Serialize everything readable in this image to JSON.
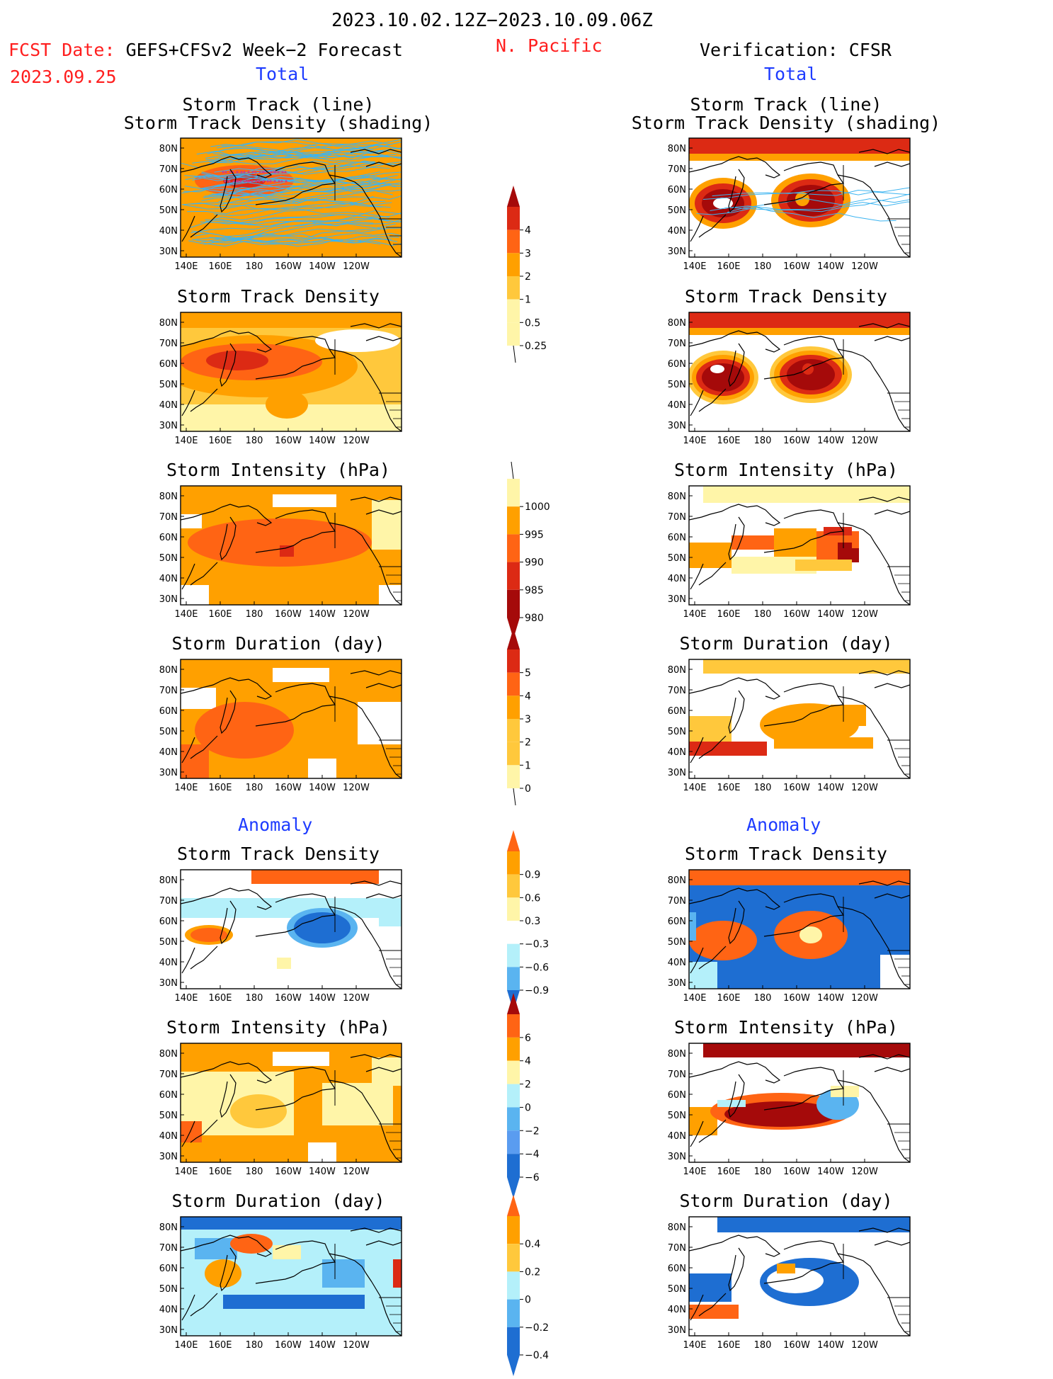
{
  "header": {
    "period": "2023.10.02.12Z−2023.10.09.06Z",
    "region": "N. Pacific",
    "fcst_label": "FCST Date:",
    "fcst_model": "GEFS+CFSv2 Week−2 Forecast",
    "fcst_date": "2023.09.25",
    "verification": "Verification: CFSR",
    "left_section_total": "Total",
    "right_section_total": "Total",
    "left_section_anomaly": "Anomaly",
    "right_section_anomaly": "Anomaly"
  },
  "panel_titles": {
    "track_line": "Storm Track (line)",
    "track_density_shading": "Storm Track Density (shading)",
    "track_density": "Storm Track Density",
    "intensity": "Storm Intensity (hPa)",
    "duration": "Storm Duration (day)"
  },
  "axes": {
    "lat_labels": [
      "80N",
      "70N",
      "60N",
      "50N",
      "40N",
      "30N"
    ],
    "lon_labels": [
      "140E",
      "160E",
      "180",
      "160W",
      "140W",
      "120W"
    ]
  },
  "colorbars": {
    "density_total": [
      "4",
      "3",
      "2",
      "1",
      "0.5",
      "0.25"
    ],
    "intensity_total": [
      "1000",
      "995",
      "990",
      "985",
      "980"
    ],
    "duration_total": [
      "5",
      "4",
      "3",
      "2",
      "1",
      "0"
    ],
    "density_anom": [
      "0.9",
      "0.6",
      "0.3",
      "−0.3",
      "−0.6",
      "−0.9"
    ],
    "intensity_anom": [
      "6",
      "4",
      "2",
      "0",
      "−2",
      "−4",
      "−6"
    ],
    "duration_anom": [
      "0.4",
      "0.2",
      "0",
      "−0.2",
      "−0.4"
    ]
  },
  "colors": {
    "dark_red": "#a50a0a",
    "red": "#dc2a14",
    "orange_red": "#ff6414",
    "orange": "#ffa000",
    "yellow_orange": "#ffc83c",
    "light_yellow": "#fff5a8",
    "light_blue": "#b4f0fa",
    "sky_blue": "#5ab4f0",
    "blue": "#1e6ed2",
    "track_blue": "#3cb4f0",
    "label_red": "#ff1e1e",
    "label_blue": "#1e3cff"
  }
}
